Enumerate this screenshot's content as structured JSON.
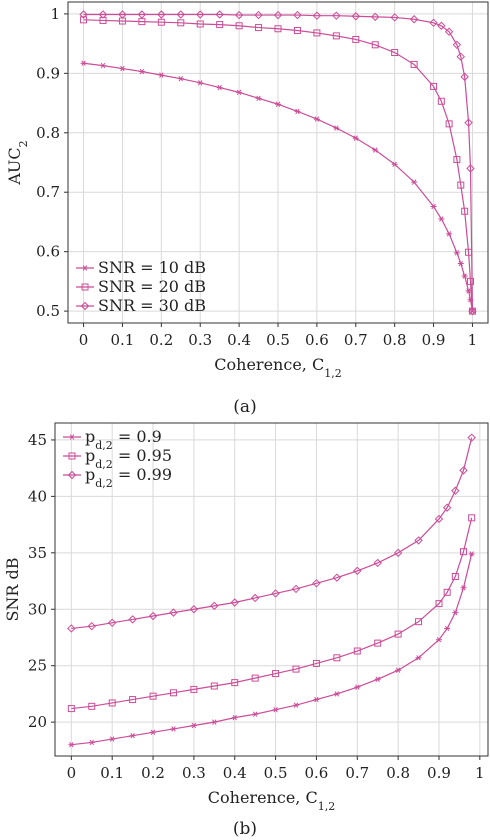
{
  "colors": {
    "series": "#cc4c98",
    "grid": "#d9d9d9",
    "frame": "#333333"
  },
  "chart_data": [
    {
      "type": "line",
      "caption": "(a)",
      "xlabel": "Coherence, C",
      "xlabel_sub": "1,2",
      "ylabel": "AUC",
      "ylabel_sub": "2",
      "xlim": [
        -0.04,
        1.04
      ],
      "ylim": [
        0.48,
        1.02
      ],
      "grid": true,
      "legend_position": "bottom-left",
      "x_ticks": [
        0,
        0.1,
        0.2,
        0.3,
        0.4,
        0.5,
        0.6,
        0.7,
        0.8,
        0.9,
        1
      ],
      "x_tick_labels": [
        "0",
        "0.1",
        "0.2",
        "0.3",
        "0.4",
        "0.5",
        "0.6",
        "0.7",
        "0.8",
        "0.9",
        "1"
      ],
      "y_ticks": [
        0.5,
        0.6,
        0.7,
        0.8,
        0.9,
        1
      ],
      "y_tick_labels": [
        "0.5",
        "0.6",
        "0.7",
        "0.8",
        "0.9",
        "1"
      ],
      "x": [
        0,
        0.05,
        0.1,
        0.15,
        0.2,
        0.25,
        0.3,
        0.35,
        0.4,
        0.45,
        0.5,
        0.55,
        0.6,
        0.65,
        0.7,
        0.75,
        0.8,
        0.85,
        0.9,
        0.92,
        0.94,
        0.96,
        0.97,
        0.98,
        0.99,
        0.995,
        1
      ],
      "series": [
        {
          "name": "SNR = 10 dB",
          "marker": "star",
          "values": [
            0.917,
            0.913,
            0.908,
            0.903,
            0.897,
            0.891,
            0.884,
            0.876,
            0.868,
            0.858,
            0.848,
            0.836,
            0.823,
            0.808,
            0.791,
            0.771,
            0.747,
            0.717,
            0.676,
            0.655,
            0.63,
            0.598,
            0.58,
            0.559,
            0.534,
            0.519,
            0.5
          ]
        },
        {
          "name": "SNR = 20 dB",
          "marker": "square",
          "values": [
            0.99,
            0.989,
            0.988,
            0.987,
            0.986,
            0.985,
            0.983,
            0.982,
            0.98,
            0.977,
            0.975,
            0.972,
            0.968,
            0.963,
            0.957,
            0.948,
            0.935,
            0.915,
            0.878,
            0.853,
            0.815,
            0.755,
            0.712,
            0.668,
            0.599,
            0.55,
            0.5
          ]
        },
        {
          "name": "SNR = 30 dB",
          "marker": "diamond",
          "values": [
            0.999,
            0.999,
            0.999,
            0.999,
            0.999,
            0.999,
            0.999,
            0.999,
            0.998,
            0.998,
            0.998,
            0.998,
            0.997,
            0.997,
            0.996,
            0.995,
            0.994,
            0.991,
            0.985,
            0.98,
            0.97,
            0.948,
            0.928,
            0.894,
            0.817,
            0.74,
            0.5
          ]
        }
      ]
    },
    {
      "type": "line",
      "caption": "(b)",
      "xlabel": "Coherence, C",
      "xlabel_sub": "1,2",
      "ylabel": "SNR dB",
      "ylabel_sub": "",
      "xlim": [
        -0.04,
        1.02
      ],
      "ylim": [
        17,
        46.5
      ],
      "grid": true,
      "legend_position": "top-left",
      "x_ticks": [
        0,
        0.1,
        0.2,
        0.3,
        0.4,
        0.5,
        0.6,
        0.7,
        0.8,
        0.9,
        1
      ],
      "x_tick_labels": [
        "0",
        "0.1",
        "0.2",
        "0.3",
        "0.4",
        "0.5",
        "0.6",
        "0.7",
        "0.8",
        "0.9",
        "1"
      ],
      "y_ticks": [
        20,
        25,
        30,
        35,
        40,
        45
      ],
      "y_tick_labels": [
        "20",
        "25",
        "30",
        "35",
        "40",
        "45"
      ],
      "x": [
        0,
        0.05,
        0.1,
        0.15,
        0.2,
        0.25,
        0.3,
        0.35,
        0.4,
        0.45,
        0.5,
        0.55,
        0.6,
        0.65,
        0.7,
        0.75,
        0.8,
        0.85,
        0.9,
        0.92,
        0.94,
        0.96,
        0.98
      ],
      "series": [
        {
          "name": "p",
          "name_sub": "d,2",
          "name_rest": " = 0.9",
          "marker": "star",
          "values": [
            18.0,
            18.2,
            18.5,
            18.8,
            19.1,
            19.4,
            19.7,
            20.0,
            20.4,
            20.7,
            21.1,
            21.5,
            22.0,
            22.5,
            23.1,
            23.8,
            24.6,
            25.7,
            27.3,
            28.3,
            29.7,
            31.9,
            34.9
          ]
        },
        {
          "name": "p",
          "name_sub": "d,2",
          "name_rest": " = 0.95",
          "marker": "square",
          "values": [
            21.2,
            21.4,
            21.7,
            22.0,
            22.3,
            22.6,
            22.9,
            23.2,
            23.5,
            23.9,
            24.3,
            24.7,
            25.2,
            25.7,
            26.3,
            27.0,
            27.8,
            28.9,
            30.5,
            31.5,
            32.9,
            35.1,
            38.1
          ]
        },
        {
          "name": "p",
          "name_sub": "d,2",
          "name_rest": " = 0.99",
          "marker": "diamond",
          "values": [
            28.3,
            28.5,
            28.8,
            29.1,
            29.4,
            29.7,
            30.0,
            30.3,
            30.6,
            31.0,
            31.4,
            31.8,
            32.3,
            32.8,
            33.4,
            34.1,
            35.0,
            36.1,
            38.0,
            39.0,
            40.5,
            42.3,
            45.2
          ]
        }
      ]
    }
  ]
}
